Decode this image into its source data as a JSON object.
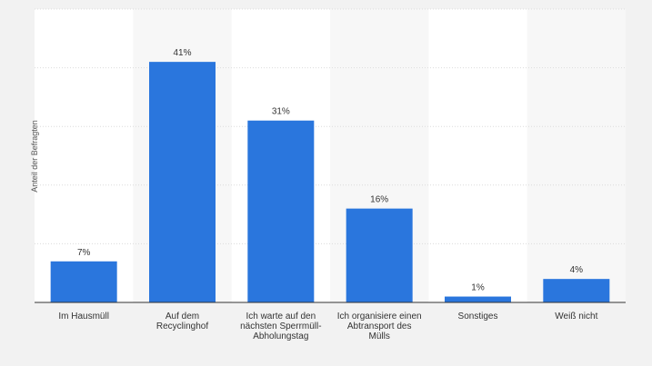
{
  "chart_data": {
    "type": "bar",
    "title": "",
    "xlabel": "",
    "ylabel": "Anteil der Befragten",
    "ylim": [
      0,
      50
    ],
    "grid": true,
    "categories": [
      [
        "Im Hausmüll"
      ],
      [
        "Auf dem",
        "Recyclinghof"
      ],
      [
        "Ich warte auf den",
        "nächsten Sperrmüll-",
        "Abholungstag"
      ],
      [
        "Ich organisiere einen",
        "Abtransport des",
        "Mülls"
      ],
      [
        "Sonstiges"
      ],
      [
        "Weiß nicht"
      ]
    ],
    "values": [
      7,
      41,
      31,
      16,
      1,
      4
    ],
    "value_labels": [
      "7%",
      "41%",
      "31%",
      "16%",
      "1%",
      "4%"
    ],
    "colors": {
      "bar": "#2a76dd",
      "plot_bg": "#ffffff",
      "band_bg": "#f7f7f7",
      "page_bg": "#f2f2f2",
      "grid": "#dcdcdc",
      "axis": "#333333",
      "text": "#333333"
    }
  }
}
